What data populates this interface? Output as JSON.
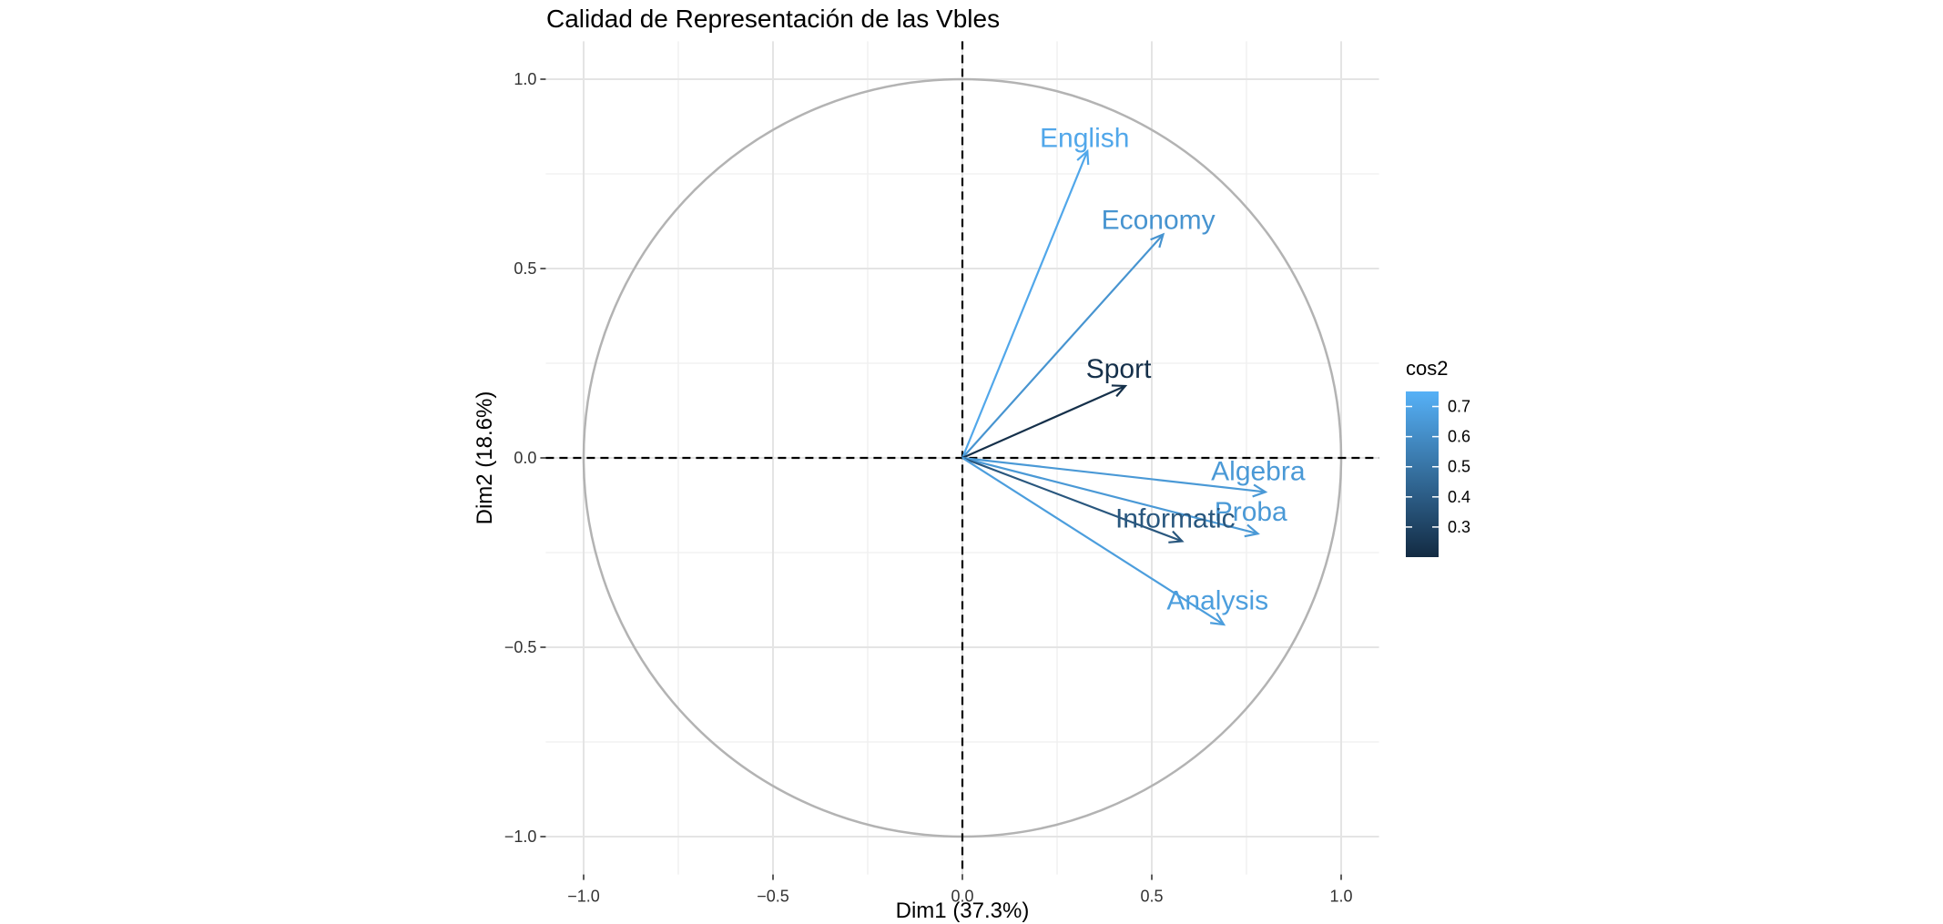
{
  "chart_data": {
    "type": "scatter",
    "subtype": "pca-variable-correlation-circle",
    "title": "Calidad de Representación de las Vbles",
    "xlabel": "Dim1 (37.3%)",
    "ylabel": "Dim2 (18.6%)",
    "xlim": [
      -1.1,
      1.1
    ],
    "ylim": [
      -1.1,
      1.1
    ],
    "x_ticks": [
      -1.0,
      -0.5,
      0.0,
      0.5,
      1.0
    ],
    "y_ticks": [
      -1.0,
      -0.5,
      0.0,
      0.5,
      1.0
    ],
    "x_tick_labels": [
      "−1.0",
      "−0.5",
      "0.0",
      "0.5",
      "1.0"
    ],
    "y_tick_labels": [
      "−1.0",
      "−0.5",
      "0.0",
      "0.5",
      "1.0"
    ],
    "grid": true,
    "unit_circle": true,
    "reference_lines": "dashed lines at x=0 and y=0",
    "variables": [
      {
        "name": "English",
        "x": 0.33,
        "y": 0.81,
        "cos2": 0.71
      },
      {
        "name": "Economy",
        "x": 0.53,
        "y": 0.59,
        "cos2": 0.63
      },
      {
        "name": "Sport",
        "x": 0.43,
        "y": 0.19,
        "cos2": 0.22
      },
      {
        "name": "Algebra",
        "x": 0.8,
        "y": -0.09,
        "cos2": 0.65
      },
      {
        "name": "Proba",
        "x": 0.78,
        "y": -0.2,
        "cos2": 0.65
      },
      {
        "name": "Informatic",
        "x": 0.58,
        "y": -0.22,
        "cos2": 0.38
      },
      {
        "name": "Analysis",
        "x": 0.69,
        "y": -0.44,
        "cos2": 0.67
      }
    ],
    "legend": {
      "title": "cos2",
      "position": "right",
      "min": 0.2,
      "max": 0.75,
      "ticks": [
        0.3,
        0.4,
        0.5,
        0.6,
        0.7
      ],
      "tick_labels": [
        "0.3",
        "0.4",
        "0.5",
        "0.6",
        "0.7"
      ],
      "color_low": "#132B43",
      "color_high": "#56B1F7"
    }
  }
}
